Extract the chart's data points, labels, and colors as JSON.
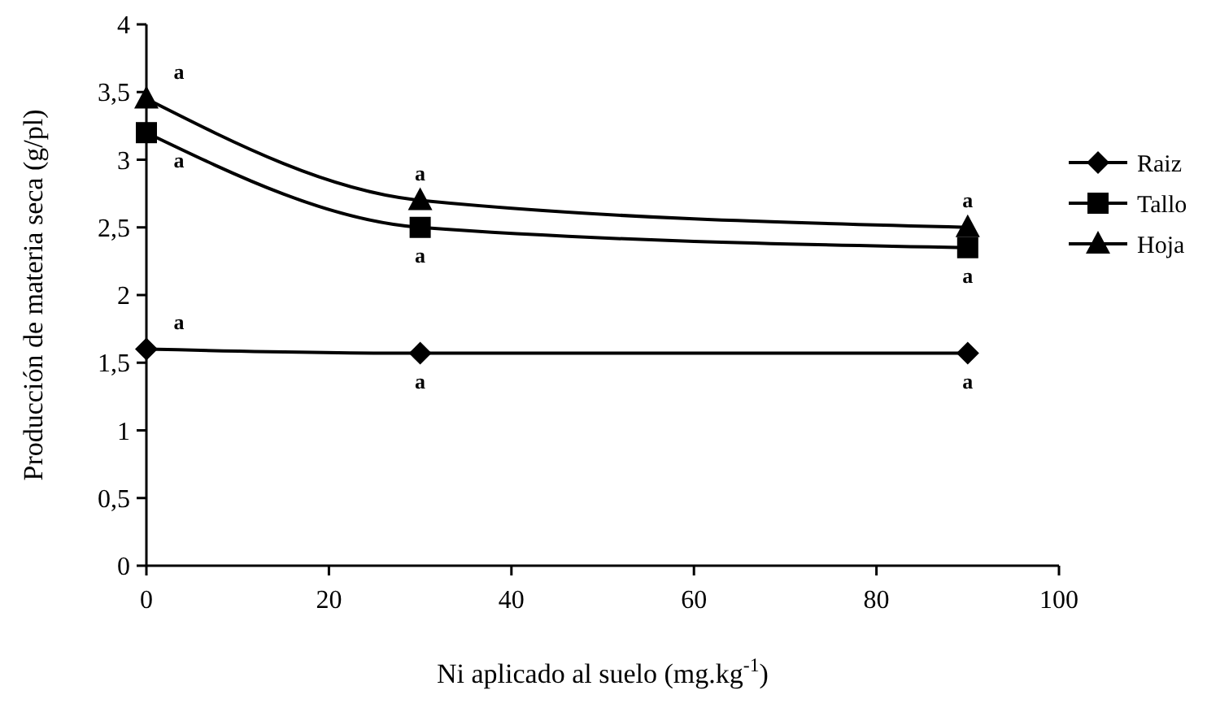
{
  "chart_data": {
    "type": "line",
    "xlabel": "Ni aplicado al suelo (mg.kg$^{-1}$)",
    "ylabel": "Producción de materia seca (g/pl)",
    "x": [
      0,
      30,
      90
    ],
    "series": [
      {
        "name": "Raiz",
        "color": "#000000",
        "marker": "diamond",
        "values": [
          1.6,
          1.57,
          1.57
        ]
      },
      {
        "name": "Tallo",
        "color": "#000000",
        "marker": "square",
        "values": [
          3.2,
          2.5,
          2.35
        ]
      },
      {
        "name": "Hoja",
        "color": "#000000",
        "marker": "triangle",
        "values": [
          3.45,
          2.7,
          2.5
        ]
      }
    ],
    "xlim": [
      0,
      100
    ],
    "xticks": [
      0,
      20,
      40,
      60,
      80,
      100
    ],
    "ylim": [
      0,
      4
    ],
    "yticks": [
      0,
      {
        "value": 0.5,
        "label": "0,5"
      },
      1,
      {
        "value": 1.5,
        "label": "1,5"
      },
      2,
      {
        "value": 2.5,
        "label": "2,5"
      },
      3,
      {
        "value": 3.5,
        "label": "3,5"
      },
      4
    ],
    "legend": "right",
    "grid": false,
    "annotations": [
      {
        "text": "a",
        "x": 0,
        "y": 3.45
      },
      {
        "text": "a",
        "x": 0,
        "y": 3.2
      },
      {
        "text": "a",
        "x": 30,
        "y": 2.7
      },
      {
        "text": "a",
        "x": 30,
        "y": 2.5
      },
      {
        "text": "a",
        "x": 90,
        "y": 2.5
      },
      {
        "text": "a",
        "x": 90,
        "y": 2.35
      },
      {
        "text": "a",
        "x": 0,
        "y": 1.6
      },
      {
        "text": "a",
        "x": 30,
        "y": 1.57
      },
      {
        "text": "a",
        "x": 90,
        "y": 1.57
      }
    ]
  }
}
